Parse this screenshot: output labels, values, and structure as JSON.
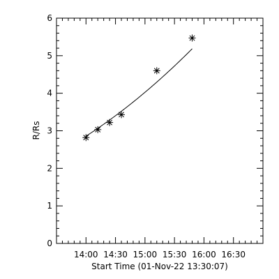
{
  "chart_data": {
    "type": "scatter",
    "title": "",
    "xlabel": "Start Time (01-Nov-22 13:30:07)",
    "ylabel": "R/Rs",
    "x_unit": "minutes after 13:30:07",
    "xlim": [
      0,
      210
    ],
    "ylim": [
      0,
      6
    ],
    "x_ticks": [
      30,
      60,
      90,
      120,
      150,
      180
    ],
    "x_tick_labels": [
      "14:00",
      "14:30",
      "15:00",
      "15:30",
      "16:00",
      "16:30"
    ],
    "y_ticks": [
      0,
      1,
      2,
      3,
      4,
      5,
      6
    ],
    "y_tick_labels": [
      "0",
      "1",
      "2",
      "3",
      "4",
      "5",
      "6"
    ],
    "marker": "asterisk",
    "grid": false,
    "series": [
      {
        "x": [
          30,
          42,
          54,
          66,
          102,
          138
        ],
        "y": [
          2.82,
          3.03,
          3.22,
          3.43,
          4.6,
          5.47
        ]
      }
    ],
    "fit": {
      "type": "quadratic",
      "coefficients": [
        2.389,
        0.01428,
        4.33e-05
      ],
      "x_range": [
        30,
        138
      ]
    }
  }
}
